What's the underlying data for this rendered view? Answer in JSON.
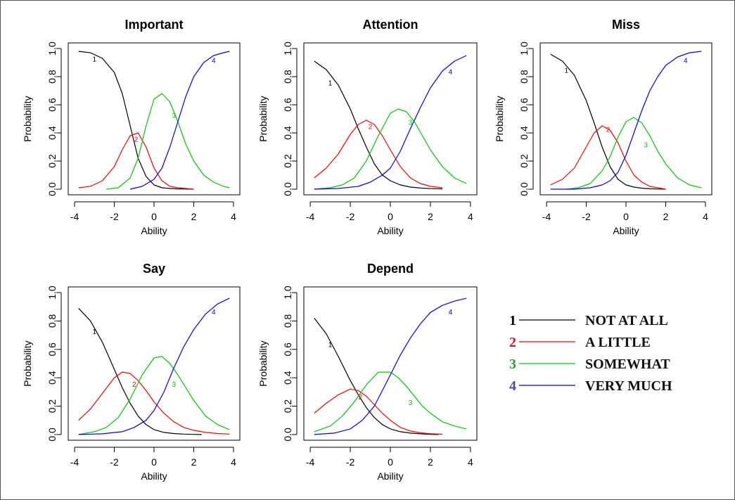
{
  "chart_data": [
    {
      "type": "line",
      "title": "Important",
      "xlabel": "Ability",
      "ylabel": "Probability",
      "xlim": [
        -4,
        4
      ],
      "ylim": [
        0,
        1
      ],
      "xticks": [
        "-4",
        "-2",
        "0",
        "2",
        "4"
      ],
      "yticks": [
        "0.0",
        "0.2",
        "0.4",
        "0.6",
        "0.8",
        "1.0"
      ],
      "series": [
        {
          "name": "1",
          "color": "#000000",
          "x": [
            -3.8,
            -3.2,
            -2.6,
            -2.0,
            -1.6,
            -1.2,
            -0.8,
            -0.4,
            0.0,
            0.4,
            0.8,
            1.2,
            1.6,
            2.0
          ],
          "y": [
            0.98,
            0.97,
            0.93,
            0.83,
            0.68,
            0.45,
            0.22,
            0.09,
            0.03,
            0.01,
            0.005,
            0.002,
            0.001,
            0.0
          ]
        },
        {
          "name": "2",
          "color": "#ff0000",
          "x": [
            -3.8,
            -3.2,
            -2.6,
            -2.0,
            -1.6,
            -1.2,
            -0.8,
            -0.4,
            0.0,
            0.4,
            0.8,
            1.2,
            1.6,
            2.0
          ],
          "y": [
            0.01,
            0.02,
            0.06,
            0.16,
            0.28,
            0.38,
            0.4,
            0.3,
            0.15,
            0.06,
            0.02,
            0.01,
            0.005,
            0.0
          ]
        },
        {
          "name": "3",
          "color": "#00cc00",
          "x": [
            -2.4,
            -1.8,
            -1.2,
            -0.8,
            -0.4,
            0.0,
            0.4,
            0.8,
            1.2,
            1.6,
            2.0,
            2.5,
            3.0,
            3.5,
            3.8
          ],
          "y": [
            0.0,
            0.01,
            0.08,
            0.22,
            0.45,
            0.64,
            0.68,
            0.62,
            0.48,
            0.32,
            0.2,
            0.1,
            0.05,
            0.02,
            0.01
          ]
        },
        {
          "name": "4",
          "color": "#0000ff",
          "x": [
            -1.2,
            -0.6,
            0.0,
            0.4,
            0.8,
            1.2,
            1.6,
            2.0,
            2.5,
            3.0,
            3.5,
            3.8
          ],
          "y": [
            0.0,
            0.02,
            0.07,
            0.15,
            0.3,
            0.48,
            0.66,
            0.8,
            0.9,
            0.95,
            0.97,
            0.98
          ]
        }
      ],
      "annotations": [
        {
          "text": "1",
          "x": -3.0,
          "y": 0.92
        },
        {
          "text": "2",
          "x": -0.9,
          "y": 0.35
        },
        {
          "text": "3",
          "x": 1.0,
          "y": 0.52
        },
        {
          "text": "4",
          "x": 3.0,
          "y": 0.91
        }
      ]
    },
    {
      "type": "line",
      "title": "Attention",
      "xlabel": "Ability",
      "ylabel": "Probability",
      "xlim": [
        -4,
        4
      ],
      "ylim": [
        0,
        1
      ],
      "xticks": [
        "-4",
        "-2",
        "0",
        "2",
        "4"
      ],
      "yticks": [
        "0.0",
        "0.2",
        "0.4",
        "0.6",
        "0.8",
        "1.0"
      ],
      "series": [
        {
          "name": "1",
          "color": "#000000",
          "x": [
            -3.8,
            -3.2,
            -2.6,
            -2.0,
            -1.6,
            -1.2,
            -0.8,
            -0.4,
            0.0,
            0.5,
            1.0,
            1.5,
            2.0,
            2.6
          ],
          "y": [
            0.91,
            0.85,
            0.74,
            0.57,
            0.43,
            0.3,
            0.18,
            0.1,
            0.06,
            0.03,
            0.015,
            0.008,
            0.004,
            0.002
          ]
        },
        {
          "name": "2",
          "color": "#ff0000",
          "x": [
            -3.8,
            -3.2,
            -2.6,
            -2.0,
            -1.6,
            -1.2,
            -0.8,
            -0.4,
            0.0,
            0.5,
            1.0,
            1.5,
            2.0,
            2.6
          ],
          "y": [
            0.08,
            0.15,
            0.25,
            0.39,
            0.46,
            0.49,
            0.46,
            0.38,
            0.28,
            0.16,
            0.08,
            0.04,
            0.02,
            0.01
          ]
        },
        {
          "name": "3",
          "color": "#00cc00",
          "x": [
            -3.8,
            -3.0,
            -2.4,
            -1.8,
            -1.2,
            -0.6,
            0.0,
            0.4,
            0.8,
            1.2,
            1.6,
            2.0,
            2.6,
            3.2,
            3.8
          ],
          "y": [
            0.0,
            0.01,
            0.03,
            0.08,
            0.2,
            0.38,
            0.54,
            0.57,
            0.55,
            0.48,
            0.38,
            0.28,
            0.16,
            0.08,
            0.04
          ]
        },
        {
          "name": "4",
          "color": "#0000ff",
          "x": [
            -3.8,
            -2.6,
            -1.6,
            -1.0,
            -0.4,
            0.0,
            0.5,
            1.0,
            1.5,
            2.0,
            2.6,
            3.2,
            3.8
          ],
          "y": [
            0.0,
            0.005,
            0.02,
            0.05,
            0.1,
            0.15,
            0.27,
            0.43,
            0.58,
            0.72,
            0.84,
            0.91,
            0.95
          ]
        }
      ],
      "annotations": [
        {
          "text": "1",
          "x": -3.0,
          "y": 0.75
        },
        {
          "text": "2",
          "x": -1.0,
          "y": 0.44
        },
        {
          "text": "3",
          "x": 1.0,
          "y": 0.47
        },
        {
          "text": "4",
          "x": 3.0,
          "y": 0.83
        }
      ]
    },
    {
      "type": "line",
      "title": "Miss",
      "xlabel": "Ability",
      "ylabel": "Probability",
      "xlim": [
        -4,
        4
      ],
      "ylim": [
        0,
        1
      ],
      "xticks": [
        "-4",
        "-2",
        "0",
        "2",
        "4"
      ],
      "yticks": [
        "0.0",
        "0.2",
        "0.4",
        "0.6",
        "0.8",
        "1.0"
      ],
      "series": [
        {
          "name": "1",
          "color": "#000000",
          "x": [
            -3.8,
            -3.2,
            -2.6,
            -2.0,
            -1.6,
            -1.2,
            -0.8,
            -0.4,
            0.0,
            0.4,
            0.8,
            1.2,
            1.6,
            2.0
          ],
          "y": [
            0.96,
            0.91,
            0.81,
            0.63,
            0.47,
            0.3,
            0.16,
            0.07,
            0.03,
            0.015,
            0.007,
            0.003,
            0.001,
            0.0
          ]
        },
        {
          "name": "2",
          "color": "#ff0000",
          "x": [
            -3.8,
            -3.2,
            -2.6,
            -2.0,
            -1.6,
            -1.2,
            -0.8,
            -0.4,
            0.0,
            0.4,
            0.8,
            1.2,
            1.6,
            2.0
          ],
          "y": [
            0.03,
            0.07,
            0.15,
            0.3,
            0.4,
            0.45,
            0.42,
            0.33,
            0.2,
            0.1,
            0.05,
            0.02,
            0.01,
            0.0
          ]
        },
        {
          "name": "3",
          "color": "#00cc00",
          "x": [
            -3.0,
            -2.4,
            -1.8,
            -1.2,
            -0.8,
            -0.4,
            0.0,
            0.4,
            0.8,
            1.2,
            1.6,
            2.0,
            2.6,
            3.2,
            3.8
          ],
          "y": [
            0.0,
            0.01,
            0.04,
            0.13,
            0.23,
            0.37,
            0.48,
            0.51,
            0.47,
            0.38,
            0.27,
            0.18,
            0.08,
            0.03,
            0.01
          ]
        },
        {
          "name": "4",
          "color": "#0000ff",
          "x": [
            -3.8,
            -2.6,
            -1.8,
            -1.2,
            -0.8,
            -0.4,
            0.0,
            0.4,
            0.8,
            1.2,
            1.6,
            2.0,
            2.6,
            3.2,
            3.8
          ],
          "y": [
            0.0,
            0.0,
            0.01,
            0.03,
            0.06,
            0.12,
            0.24,
            0.4,
            0.56,
            0.7,
            0.8,
            0.88,
            0.94,
            0.97,
            0.98
          ]
        }
      ],
      "annotations": [
        {
          "text": "1",
          "x": -3.0,
          "y": 0.84
        },
        {
          "text": "2",
          "x": -0.9,
          "y": 0.42
        },
        {
          "text": "3",
          "x": 1.0,
          "y": 0.31
        },
        {
          "text": "4",
          "x": 3.0,
          "y": 0.91
        }
      ]
    },
    {
      "type": "line",
      "title": "Say",
      "xlabel": "Ability",
      "ylabel": "Probability",
      "xlim": [
        -4,
        4
      ],
      "ylim": [
        0,
        1
      ],
      "xticks": [
        "-4",
        "-2",
        "0",
        "2",
        "4"
      ],
      "yticks": [
        "0.0",
        "0.2",
        "0.4",
        "0.6",
        "0.8",
        "1.0"
      ],
      "series": [
        {
          "name": "1",
          "color": "#000000",
          "x": [
            -3.8,
            -3.2,
            -2.6,
            -2.0,
            -1.6,
            -1.2,
            -0.8,
            -0.4,
            0.0,
            0.5,
            1.0,
            1.5,
            2.0,
            2.4
          ],
          "y": [
            0.89,
            0.8,
            0.65,
            0.46,
            0.33,
            0.22,
            0.13,
            0.07,
            0.035,
            0.015,
            0.007,
            0.003,
            0.001,
            0.0
          ]
        },
        {
          "name": "2",
          "color": "#ff0000",
          "x": [
            -3.8,
            -3.2,
            -2.6,
            -2.0,
            -1.6,
            -1.2,
            -0.8,
            -0.4,
            0.0,
            0.5,
            1.0,
            1.5,
            2.0,
            2.6,
            3.2,
            3.8
          ],
          "y": [
            0.1,
            0.18,
            0.29,
            0.4,
            0.44,
            0.43,
            0.38,
            0.31,
            0.23,
            0.15,
            0.09,
            0.05,
            0.03,
            0.015,
            0.007,
            0.003
          ]
        },
        {
          "name": "3",
          "color": "#00cc00",
          "x": [
            -3.8,
            -3.0,
            -2.4,
            -1.8,
            -1.2,
            -0.6,
            0.0,
            0.4,
            0.8,
            1.2,
            1.6,
            2.0,
            2.6,
            3.2,
            3.8
          ],
          "y": [
            0.0,
            0.02,
            0.05,
            0.12,
            0.25,
            0.42,
            0.54,
            0.55,
            0.5,
            0.42,
            0.33,
            0.24,
            0.13,
            0.07,
            0.035
          ]
        },
        {
          "name": "4",
          "color": "#0000ff",
          "x": [
            -3.8,
            -2.6,
            -1.6,
            -1.0,
            -0.4,
            0.0,
            0.5,
            1.0,
            1.5,
            2.0,
            2.6,
            3.2,
            3.8
          ],
          "y": [
            0.0,
            0.005,
            0.02,
            0.05,
            0.1,
            0.17,
            0.3,
            0.47,
            0.62,
            0.74,
            0.85,
            0.92,
            0.96
          ]
        }
      ],
      "annotations": [
        {
          "text": "1",
          "x": -3.0,
          "y": 0.72
        },
        {
          "text": "2",
          "x": -1.0,
          "y": 0.35
        },
        {
          "text": "3",
          "x": 1.0,
          "y": 0.35
        },
        {
          "text": "4",
          "x": 3.0,
          "y": 0.86
        }
      ]
    },
    {
      "type": "line",
      "title": "Depend",
      "xlabel": "Ability",
      "ylabel": "Probability",
      "xlim": [
        -4,
        4
      ],
      "ylim": [
        0,
        1
      ],
      "xticks": [
        "-4",
        "-2",
        "0",
        "2",
        "4"
      ],
      "yticks": [
        "0.0",
        "0.2",
        "0.4",
        "0.6",
        "0.8",
        "1.0"
      ],
      "series": [
        {
          "name": "1",
          "color": "#000000",
          "x": [
            -3.8,
            -3.2,
            -2.6,
            -2.0,
            -1.6,
            -1.2,
            -0.8,
            -0.4,
            0.0,
            0.5,
            1.0,
            1.5,
            2.0,
            2.4
          ],
          "y": [
            0.82,
            0.71,
            0.55,
            0.38,
            0.28,
            0.19,
            0.12,
            0.07,
            0.04,
            0.02,
            0.01,
            0.005,
            0.002,
            0.0
          ]
        },
        {
          "name": "2",
          "color": "#ff0000",
          "x": [
            -3.8,
            -3.2,
            -2.6,
            -2.0,
            -1.6,
            -1.2,
            -0.8,
            -0.4,
            0.0,
            0.5,
            1.0,
            1.5,
            2.0,
            2.6
          ],
          "y": [
            0.15,
            0.22,
            0.28,
            0.32,
            0.31,
            0.27,
            0.21,
            0.15,
            0.1,
            0.05,
            0.025,
            0.012,
            0.006,
            0.002
          ]
        },
        {
          "name": "3",
          "color": "#00cc00",
          "x": [
            -3.8,
            -3.0,
            -2.4,
            -1.8,
            -1.2,
            -0.6,
            0.0,
            0.4,
            0.8,
            1.2,
            1.6,
            2.0,
            2.6,
            3.2,
            3.8
          ],
          "y": [
            0.02,
            0.06,
            0.13,
            0.23,
            0.35,
            0.44,
            0.44,
            0.4,
            0.34,
            0.27,
            0.2,
            0.15,
            0.09,
            0.06,
            0.04
          ]
        },
        {
          "name": "4",
          "color": "#0000ff",
          "x": [
            -3.8,
            -2.8,
            -2.0,
            -1.4,
            -0.8,
            -0.4,
            0.0,
            0.5,
            1.0,
            1.5,
            2.0,
            2.6,
            3.2,
            3.8
          ],
          "y": [
            0.0,
            0.01,
            0.04,
            0.1,
            0.2,
            0.31,
            0.42,
            0.56,
            0.68,
            0.78,
            0.86,
            0.91,
            0.94,
            0.96
          ]
        }
      ],
      "annotations": [
        {
          "text": "1",
          "x": -3.0,
          "y": 0.63
        },
        {
          "text": "2",
          "x": -1.5,
          "y": 0.26
        },
        {
          "text": "3",
          "x": 1.0,
          "y": 0.22
        },
        {
          "text": "4",
          "x": 3.0,
          "y": 0.86
        }
      ]
    }
  ],
  "legend": {
    "items": [
      {
        "number": "1",
        "label": "NOT AT ALL",
        "color": "#000000",
        "number_color": "#000000"
      },
      {
        "number": "2",
        "label": "A LITTLE",
        "color": "#ff0000",
        "number_color": "#e0102f"
      },
      {
        "number": "3",
        "label": "SOMEWHAT",
        "color": "#00cc00",
        "number_color": "#2e9a2e"
      },
      {
        "number": "4",
        "label": "VERY MUCH",
        "color": "#0000ff",
        "number_color": "#4a4aa8"
      }
    ]
  }
}
